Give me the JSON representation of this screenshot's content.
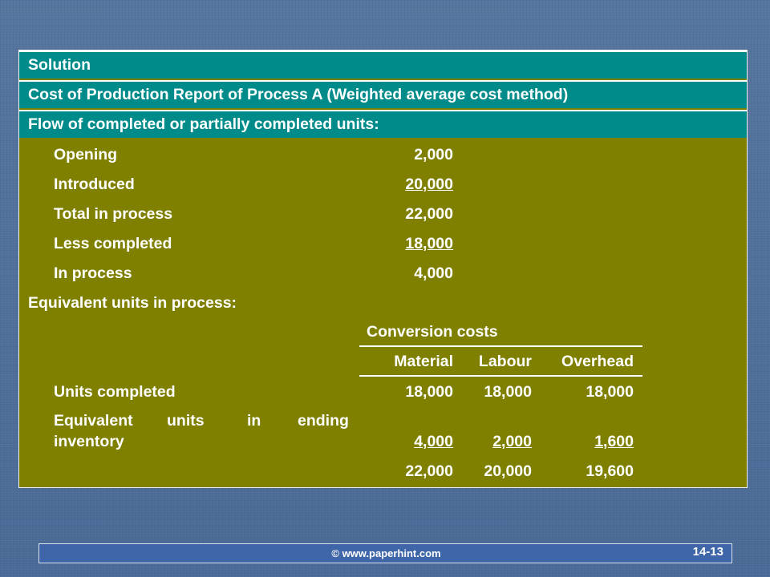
{
  "header": {
    "solution": "Solution",
    "title": "Cost of Production Report of Process A (Weighted average cost method)",
    "flow": "Flow of completed or partially completed units:"
  },
  "flow_rows": [
    {
      "label": "Opening",
      "value": "2,000"
    },
    {
      "label": "Introduced",
      "value": "20,000"
    },
    {
      "label": "Total in process",
      "value": "22,000"
    },
    {
      "label": "Less completed",
      "value": "18,000"
    },
    {
      "label": "In process",
      "value": "4,000"
    }
  ],
  "equivalent": {
    "heading": "Equivalent units in process:",
    "conversion_costs": "Conversion costs",
    "columns": [
      "Material",
      "Labour",
      "Overhead"
    ],
    "rows": [
      {
        "label": "Units completed",
        "values": [
          "18,000",
          "18,000",
          "18,000"
        ]
      },
      {
        "label_line1_words": [
          "Equivalent",
          "units",
          "in",
          "ending"
        ],
        "label_line2": "inventory",
        "values": [
          "4,000",
          "2,000",
          "1,600"
        ]
      },
      {
        "label": "",
        "values": [
          "22,000",
          "20,000",
          "19,600"
        ]
      }
    ]
  },
  "footer": {
    "copyright": "© www.paperhint.com",
    "slide_number": "14-13"
  }
}
